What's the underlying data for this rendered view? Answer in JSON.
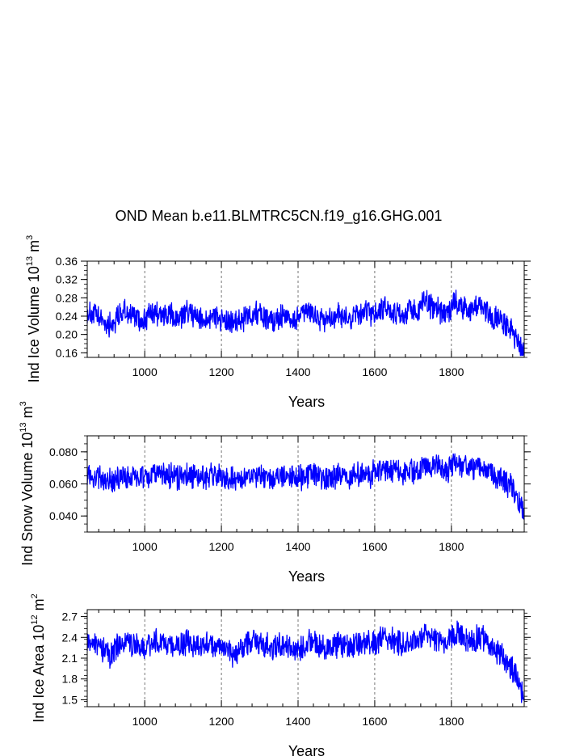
{
  "title": "OND Mean b.e11.BLMTRC5CN.f19_g16.GHG.001",
  "chart_data": [
    {
      "type": "line",
      "xlabel": "Years",
      "ylabel": "Ind Ice Volume 10",
      "ylabel_exp": "13",
      "ylabel_unit": " m",
      "ylabel_unit_exp": "3",
      "xlim": [
        850,
        1990
      ],
      "ylim": [
        0.15,
        0.36
      ],
      "xticks": [
        1000,
        1200,
        1400,
        1600,
        1800
      ],
      "yticks": [
        "0.36",
        "0.32",
        "0.28",
        "0.24",
        "0.20",
        "0.16"
      ],
      "series": [
        {
          "color": "#0000ff",
          "x": [
            850,
            870,
            890,
            910,
            930,
            950,
            970,
            990,
            1010,
            1030,
            1050,
            1070,
            1090,
            1110,
            1130,
            1150,
            1170,
            1190,
            1210,
            1230,
            1250,
            1270,
            1290,
            1310,
            1330,
            1350,
            1370,
            1390,
            1410,
            1430,
            1450,
            1470,
            1490,
            1510,
            1530,
            1550,
            1570,
            1590,
            1610,
            1630,
            1650,
            1670,
            1690,
            1710,
            1730,
            1750,
            1770,
            1790,
            1810,
            1830,
            1850,
            1870,
            1890,
            1910,
            1930,
            1950,
            1970,
            1985
          ],
          "y": [
            0.25,
            0.24,
            0.23,
            0.22,
            0.24,
            0.25,
            0.24,
            0.23,
            0.24,
            0.25,
            0.24,
            0.24,
            0.23,
            0.25,
            0.24,
            0.23,
            0.24,
            0.24,
            0.23,
            0.22,
            0.23,
            0.24,
            0.25,
            0.24,
            0.23,
            0.24,
            0.24,
            0.23,
            0.24,
            0.25,
            0.24,
            0.23,
            0.24,
            0.24,
            0.23,
            0.24,
            0.25,
            0.24,
            0.25,
            0.26,
            0.25,
            0.24,
            0.25,
            0.25,
            0.27,
            0.26,
            0.25,
            0.25,
            0.27,
            0.26,
            0.25,
            0.26,
            0.25,
            0.24,
            0.23,
            0.21,
            0.19,
            0.16
          ]
        }
      ]
    },
    {
      "type": "line",
      "xlabel": "Years",
      "ylabel": "Ind Snow Volume 10",
      "ylabel_exp": "13",
      "ylabel_unit": " m",
      "ylabel_unit_exp": "3",
      "xlim": [
        850,
        1990
      ],
      "ylim": [
        0.03,
        0.09
      ],
      "xticks": [
        1000,
        1200,
        1400,
        1600,
        1800
      ],
      "yticks": [
        "0.080",
        "0.060",
        "0.040"
      ],
      "series": [
        {
          "color": "#0000ff",
          "x": [
            850,
            870,
            890,
            910,
            930,
            950,
            970,
            990,
            1010,
            1030,
            1050,
            1070,
            1090,
            1110,
            1130,
            1150,
            1170,
            1190,
            1210,
            1230,
            1250,
            1270,
            1290,
            1310,
            1330,
            1350,
            1370,
            1390,
            1410,
            1430,
            1450,
            1470,
            1490,
            1510,
            1530,
            1550,
            1570,
            1590,
            1610,
            1630,
            1650,
            1670,
            1690,
            1710,
            1730,
            1750,
            1770,
            1790,
            1810,
            1830,
            1850,
            1870,
            1890,
            1910,
            1930,
            1950,
            1970,
            1985
          ],
          "y": [
            0.066,
            0.065,
            0.063,
            0.061,
            0.063,
            0.065,
            0.064,
            0.063,
            0.064,
            0.066,
            0.065,
            0.065,
            0.064,
            0.066,
            0.065,
            0.064,
            0.065,
            0.065,
            0.064,
            0.062,
            0.063,
            0.065,
            0.066,
            0.065,
            0.064,
            0.065,
            0.065,
            0.063,
            0.064,
            0.066,
            0.065,
            0.064,
            0.064,
            0.065,
            0.064,
            0.065,
            0.066,
            0.066,
            0.067,
            0.069,
            0.068,
            0.067,
            0.068,
            0.068,
            0.071,
            0.071,
            0.07,
            0.069,
            0.072,
            0.071,
            0.07,
            0.071,
            0.069,
            0.066,
            0.063,
            0.059,
            0.053,
            0.042
          ]
        }
      ]
    },
    {
      "type": "line",
      "xlabel": "Years",
      "ylabel": "Ind Ice Area 10",
      "ylabel_exp": "12",
      "ylabel_unit": " m",
      "ylabel_unit_exp": "2",
      "xlim": [
        850,
        1990
      ],
      "ylim": [
        1.4,
        2.8
      ],
      "xticks": [
        1000,
        1200,
        1400,
        1600,
        1800
      ],
      "yticks": [
        "2.7",
        "2.4",
        "2.1",
        "1.8",
        "1.5"
      ],
      "series": [
        {
          "color": "#0000ff",
          "x": [
            850,
            870,
            890,
            910,
            930,
            950,
            970,
            990,
            1010,
            1030,
            1050,
            1070,
            1090,
            1110,
            1130,
            1150,
            1170,
            1190,
            1210,
            1230,
            1250,
            1270,
            1290,
            1310,
            1330,
            1350,
            1370,
            1390,
            1410,
            1430,
            1450,
            1470,
            1490,
            1510,
            1530,
            1550,
            1570,
            1590,
            1610,
            1630,
            1650,
            1670,
            1690,
            1710,
            1730,
            1750,
            1770,
            1790,
            1810,
            1830,
            1850,
            1870,
            1890,
            1910,
            1930,
            1950,
            1970,
            1985
          ],
          "y": [
            2.35,
            2.3,
            2.25,
            2.15,
            2.3,
            2.35,
            2.3,
            2.25,
            2.3,
            2.35,
            2.3,
            2.3,
            2.25,
            2.35,
            2.3,
            2.25,
            2.3,
            2.3,
            2.25,
            2.15,
            2.2,
            2.3,
            2.35,
            2.3,
            2.25,
            2.3,
            2.3,
            2.2,
            2.25,
            2.35,
            2.3,
            2.25,
            2.3,
            2.3,
            2.25,
            2.3,
            2.35,
            2.3,
            2.35,
            2.4,
            2.35,
            2.3,
            2.35,
            2.35,
            2.45,
            2.4,
            2.35,
            2.35,
            2.45,
            2.4,
            2.35,
            2.4,
            2.35,
            2.25,
            2.15,
            2.0,
            1.85,
            1.55
          ]
        }
      ]
    }
  ]
}
